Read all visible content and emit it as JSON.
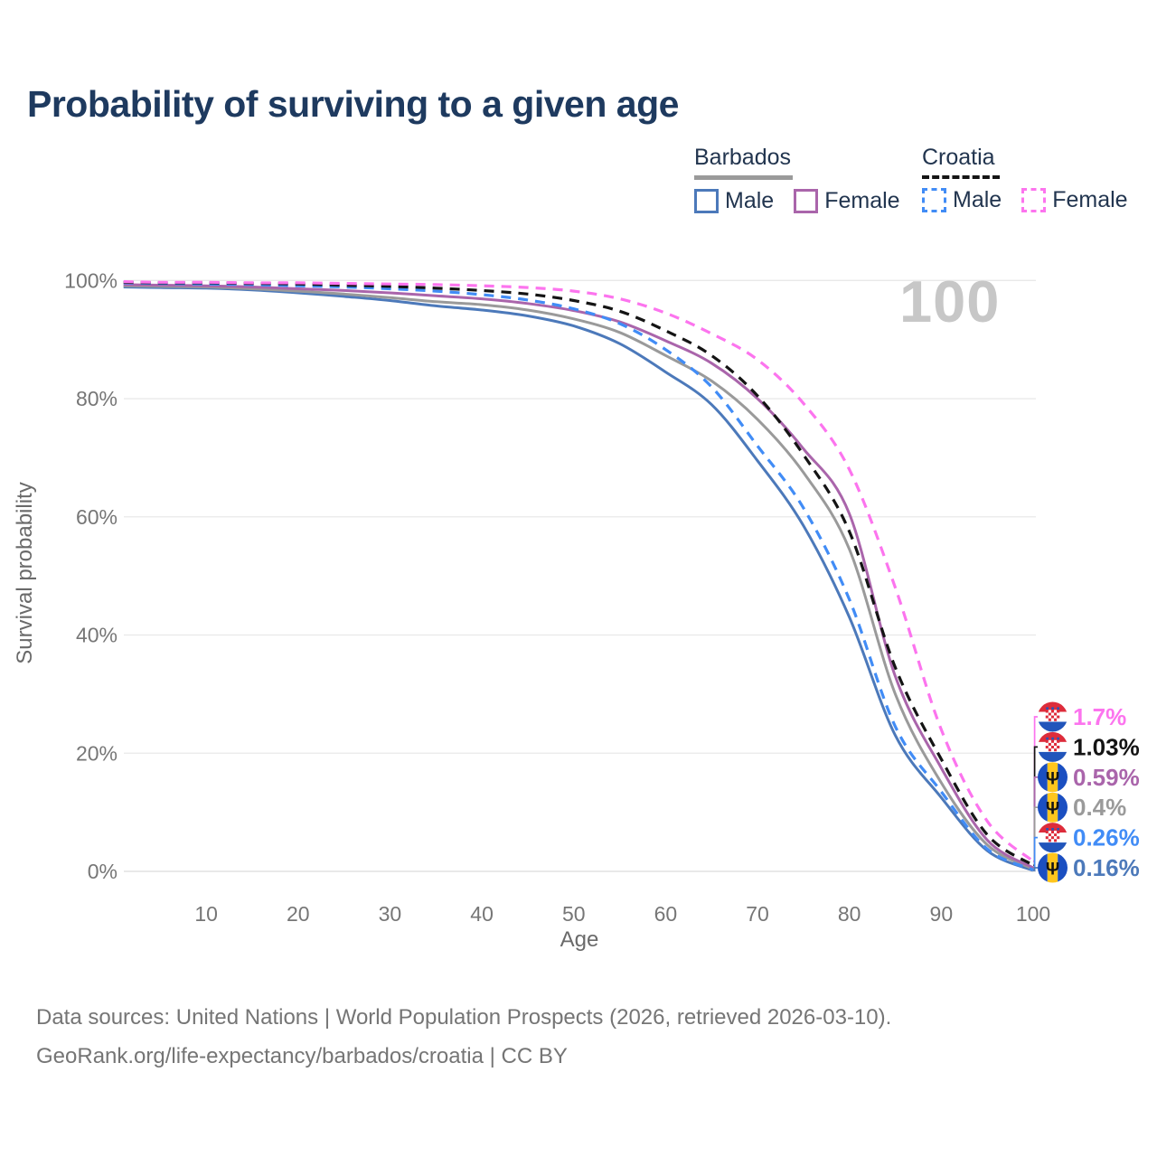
{
  "title": "Probability of surviving to a given age",
  "watermark_age": "100",
  "legend": {
    "groups": [
      {
        "name": "Barbados",
        "line_color": "#9a9a9a",
        "line_dash": false,
        "items": [
          {
            "label": "Male",
            "color": "#4c79ba",
            "dash": false
          },
          {
            "label": "Female",
            "color": "#aa65ab",
            "dash": false
          }
        ]
      },
      {
        "name": "Croatia",
        "line_color": "#141414",
        "line_dash": true,
        "items": [
          {
            "label": "Male",
            "color": "#418cf6",
            "dash": true
          },
          {
            "label": "Female",
            "color": "#fc74ee",
            "dash": true
          }
        ]
      }
    ]
  },
  "chart_data": {
    "type": "line",
    "title": "Probability of surviving to a given age",
    "xlabel": "Age",
    "ylabel": "Survival probability",
    "xlim": [
      1,
      100
    ],
    "ylim": [
      0,
      100
    ],
    "grid": "horizontal",
    "legend_position": "top-right",
    "x_ticks": [
      10,
      20,
      30,
      40,
      50,
      60,
      70,
      80,
      90,
      100
    ],
    "x_tick_labels": [
      "10",
      "20",
      "30",
      "40",
      "50",
      "60",
      "70",
      "80",
      "90",
      "100"
    ],
    "y_ticks": [
      0,
      20,
      40,
      60,
      80,
      100
    ],
    "y_tick_labels": [
      "0%",
      "20%",
      "40%",
      "60%",
      "80%",
      "100%"
    ],
    "x": [
      1,
      5,
      10,
      15,
      20,
      25,
      30,
      35,
      40,
      45,
      50,
      55,
      60,
      65,
      70,
      75,
      80,
      85,
      90,
      95,
      100
    ],
    "series": [
      {
        "name": "Barbados Male",
        "country": "Barbados",
        "sex": "Male",
        "flag": "barbados",
        "color": "#4c79ba",
        "dash": false,
        "end_label": "0.16%",
        "values": [
          98.9,
          98.8,
          98.7,
          98.4,
          97.9,
          97.3,
          96.6,
          95.7,
          95.0,
          94.0,
          92.3,
          89.3,
          84.5,
          79.0,
          69.5,
          58.5,
          43.0,
          23.0,
          12.5,
          3.5,
          0.16
        ]
      },
      {
        "name": "Barbados (both sexes)",
        "country": "Barbados",
        "sex": "Both",
        "flag": "barbados",
        "color": "#9a9a9a",
        "dash": false,
        "end_label": "0.4%",
        "values": [
          99.1,
          99.0,
          98.9,
          98.6,
          98.2,
          97.7,
          97.1,
          96.4,
          95.9,
          95.0,
          93.5,
          91.2,
          87.3,
          83.0,
          76.5,
          67.5,
          54.5,
          30.0,
          15.0,
          4.5,
          0.4
        ]
      },
      {
        "name": "Barbados Female",
        "country": "Barbados",
        "sex": "Female",
        "flag": "barbados",
        "color": "#aa65ab",
        "dash": false,
        "end_label": "0.59%",
        "values": [
          99.3,
          99.2,
          99.1,
          98.9,
          98.6,
          98.3,
          97.9,
          97.4,
          96.9,
          96.1,
          94.9,
          93.0,
          89.8,
          86.0,
          80.0,
          71.5,
          60.5,
          33.0,
          17.5,
          5.3,
          0.59
        ]
      },
      {
        "name": "Croatia Male",
        "country": "Croatia",
        "sex": "Male",
        "flag": "croatia",
        "color": "#418cf6",
        "dash": true,
        "end_label": "0.26%",
        "values": [
          99.6,
          99.5,
          99.4,
          99.3,
          99.1,
          98.9,
          98.6,
          98.2,
          97.6,
          96.7,
          95.2,
          92.7,
          88.3,
          82.0,
          72.0,
          61.5,
          46.0,
          24.5,
          13.5,
          3.8,
          0.26
        ]
      },
      {
        "name": "Croatia (both sexes)",
        "country": "Croatia",
        "sex": "Both",
        "flag": "croatia",
        "color": "#141414",
        "dash": true,
        "end_label": "1.03%",
        "values": [
          99.7,
          99.6,
          99.6,
          99.5,
          99.4,
          99.2,
          99.0,
          98.7,
          98.3,
          97.7,
          96.6,
          94.8,
          91.5,
          87.3,
          80.5,
          70.5,
          57.5,
          34.5,
          19.0,
          6.2,
          1.03
        ]
      },
      {
        "name": "Croatia Female",
        "country": "Croatia",
        "sex": "Female",
        "flag": "croatia",
        "color": "#fc74ee",
        "dash": true,
        "end_label": "1.7%",
        "values": [
          99.8,
          99.7,
          99.7,
          99.6,
          99.6,
          99.5,
          99.4,
          99.3,
          99.1,
          98.8,
          98.2,
          96.9,
          94.5,
          91.0,
          86.6,
          79.2,
          68.0,
          48.0,
          24.0,
          8.5,
          1.7
        ]
      }
    ]
  },
  "footer": {
    "line1": "Data sources: United Nations | World Population Prospects (2026, retrieved 2026-03-10).",
    "line2": "GeoRank.org/life-expectancy/barbados/croatia | CC BY"
  }
}
